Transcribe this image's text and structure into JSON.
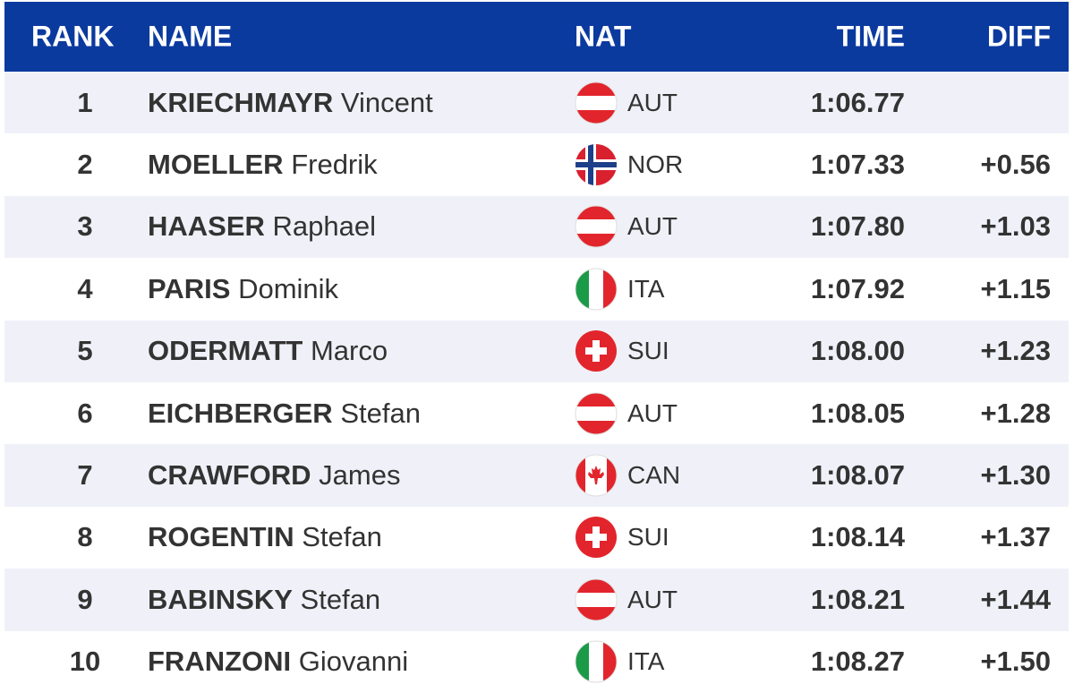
{
  "table": {
    "headers": [
      "RANK",
      "NAME",
      "NAT",
      "TIME",
      "DIFF"
    ],
    "rows": [
      {
        "rank": 1,
        "surname": "KRIECHMAYR",
        "given": "Vincent",
        "nat": "AUT",
        "time": "1:06.77"
      },
      {
        "rank": 2,
        "surname": "MOELLER",
        "given": "Fredrik",
        "nat": "NOR",
        "time": "1:07.33",
        "diff": "+0.56"
      },
      {
        "rank": 3,
        "surname": "HAASER",
        "given": "Raphael",
        "nat": "AUT",
        "time": "1:07.80",
        "diff": "+1.03"
      },
      {
        "rank": 4,
        "surname": "PARIS",
        "given": "Dominik",
        "nat": "ITA",
        "time": "1:07.92",
        "diff": "+1.15"
      },
      {
        "rank": 5,
        "surname": "ODERMATT",
        "given": "Marco",
        "nat": "SUI",
        "time": "1:08.00",
        "diff": "+1.23"
      },
      {
        "rank": 6,
        "surname": "EICHBERGER",
        "given": "Stefan",
        "nat": "AUT",
        "time": "1:08.05",
        "diff": "+1.28"
      },
      {
        "rank": 7,
        "surname": "CRAWFORD",
        "given": "James",
        "nat": "CAN",
        "time": "1:08.07",
        "diff": "+1.30"
      },
      {
        "rank": 8,
        "surname": "ROGENTIN",
        "given": "Stefan",
        "nat": "SUI",
        "time": "1:08.14",
        "diff": "+1.37"
      },
      {
        "rank": 9,
        "surname": "BABINSKY",
        "given": "Stefan",
        "nat": "AUT",
        "time": "1:08.21",
        "diff": "+1.44"
      },
      {
        "rank": 10,
        "surname": "FRANZONI",
        "given": "Giovanni",
        "nat": "ITA",
        "time": "1:08.27",
        "diff": "+1.50"
      }
    ]
  }
}
